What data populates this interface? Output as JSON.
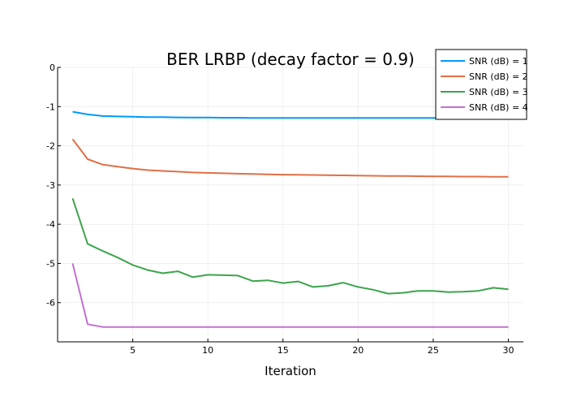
{
  "chart_data": {
    "type": "line",
    "title": "BER LRBP (decay factor = 0.9)",
    "xlabel": "Iteration",
    "ylabel": "",
    "xlim": [
      0,
      31
    ],
    "ylim": [
      -7,
      0
    ],
    "xticks": [
      5,
      10,
      15,
      20,
      25,
      30
    ],
    "yticks": [
      0,
      -1,
      -2,
      -3,
      -4,
      -5,
      -6
    ],
    "xtick_labels": [
      "5",
      "10",
      "15",
      "20",
      "25",
      "30"
    ],
    "ytick_labels": [
      "0",
      "-1",
      "-2",
      "-3",
      "-4",
      "-5",
      "-6"
    ],
    "grid": true,
    "legend_position": "top-right",
    "x": [
      1,
      2,
      3,
      4,
      5,
      6,
      7,
      8,
      9,
      10,
      11,
      12,
      13,
      14,
      15,
      16,
      17,
      18,
      19,
      20,
      21,
      22,
      23,
      24,
      25,
      26,
      27,
      28,
      29,
      30
    ],
    "series": [
      {
        "name": "SNR (dB) = 1",
        "color": "#009af9",
        "values": [
          -1.13,
          -1.2,
          -1.24,
          -1.25,
          -1.26,
          -1.27,
          -1.27,
          -1.275,
          -1.28,
          -1.28,
          -1.285,
          -1.285,
          -1.29,
          -1.29,
          -1.29,
          -1.29,
          -1.29,
          -1.29,
          -1.29,
          -1.29,
          -1.29,
          -1.29,
          -1.29,
          -1.29,
          -1.29,
          -1.295,
          -1.295,
          -1.295,
          -1.295,
          -1.295
        ]
      },
      {
        "name": "SNR (dB) = 2",
        "color": "#e26f46",
        "values": [
          -1.83,
          -2.34,
          -2.48,
          -2.53,
          -2.58,
          -2.62,
          -2.64,
          -2.66,
          -2.68,
          -2.69,
          -2.7,
          -2.71,
          -2.72,
          -2.73,
          -2.735,
          -2.74,
          -2.745,
          -2.75,
          -2.755,
          -2.76,
          -2.765,
          -2.77,
          -2.77,
          -2.775,
          -2.78,
          -2.78,
          -2.785,
          -2.785,
          -2.79,
          -2.79
        ]
      },
      {
        "name": "SNR (dB) = 3",
        "color": "#3da44d",
        "values": [
          -3.34,
          -4.5,
          -4.68,
          -4.85,
          -5.04,
          -5.17,
          -5.25,
          -5.2,
          -5.35,
          -5.29,
          -5.3,
          -5.31,
          -5.45,
          -5.43,
          -5.5,
          -5.46,
          -5.6,
          -5.57,
          -5.49,
          -5.6,
          -5.67,
          -5.77,
          -5.75,
          -5.7,
          -5.7,
          -5.73,
          -5.72,
          -5.7,
          -5.62,
          -5.66
        ]
      },
      {
        "name": "SNR (dB) = 4",
        "color": "#c271d2",
        "values": [
          -5.0,
          -6.55,
          -6.62,
          -6.62,
          -6.62,
          -6.62,
          -6.62,
          -6.62,
          -6.62,
          -6.62,
          -6.62,
          -6.62,
          -6.62,
          -6.62,
          -6.62,
          -6.62,
          -6.62,
          -6.62,
          -6.62,
          -6.62,
          -6.62,
          -6.62,
          -6.62,
          -6.62,
          -6.62,
          -6.62,
          -6.62,
          -6.62,
          -6.62,
          -6.62
        ]
      }
    ]
  }
}
